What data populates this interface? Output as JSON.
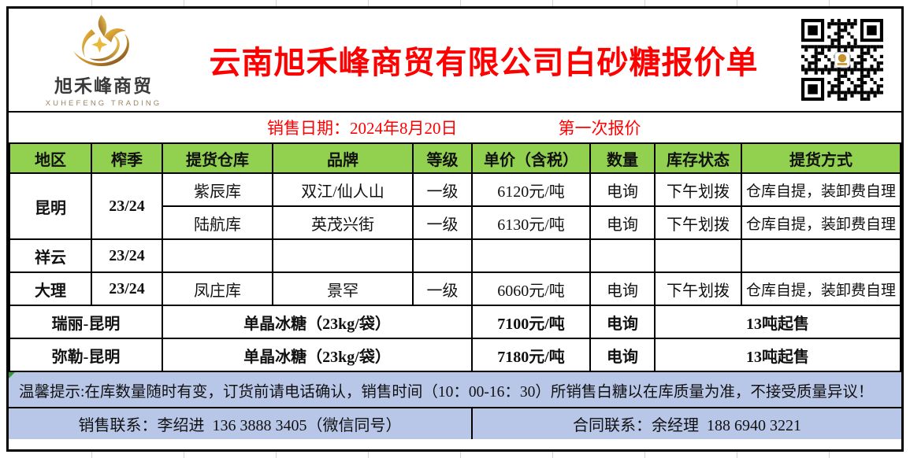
{
  "colors": {
    "title_red": "#ff0000",
    "header_green": "#92d050",
    "footer_lavender": "#b8c6e8",
    "logo_gold": "#c9912d",
    "border_black": "#000000"
  },
  "brand": {
    "name_cn": "旭禾峰商贸",
    "name_en": "XUHEFENG TRADING"
  },
  "title": "云南旭禾峰商贸有限公司白砂糖报价单",
  "date_row": {
    "sale_date": "销售日期：2024年8月20日",
    "quote_round": "第一次报价"
  },
  "table": {
    "headers": [
      "地区",
      "榨季",
      "提货仓库",
      "品牌",
      "等级",
      "单价（含税）",
      "数量",
      "库存状态",
      "提货方式"
    ],
    "rows": [
      {
        "region": "昆明",
        "season": "23/24",
        "warehouse": "紫辰库",
        "brand": "双江/仙人山",
        "grade": "一级",
        "price": "6120元/吨",
        "quantity": "电询",
        "stock": "下午划拨",
        "pickup": "仓库自提，装卸费自理"
      },
      {
        "warehouse": "陆航库",
        "brand": "英茂兴街",
        "grade": "一级",
        "price": "6130元/吨",
        "quantity": "电询",
        "stock": "下午划拨",
        "pickup": "仓库自提，装卸费自理"
      },
      {
        "region": "祥云",
        "season": "23/24",
        "warehouse": "",
        "brand": "",
        "grade": "",
        "price": "",
        "quantity": "",
        "stock": "",
        "pickup": ""
      },
      {
        "region": "大理",
        "season": "23/24",
        "warehouse": "凤庄库",
        "brand": "景罕",
        "grade": "一级",
        "price": "6060元/吨",
        "quantity": "电询",
        "stock": "下午划拨",
        "pickup": "仓库自提，装卸费自理"
      },
      {
        "route": "瑞丽-昆明",
        "product": "单晶冰糖（23kg/袋）",
        "price": "7100元/吨",
        "quantity": "电询",
        "min_sale": "13吨起售"
      },
      {
        "route": "弥勒-昆明",
        "product": "单晶冰糖（23kg/袋）",
        "price": "7180元/吨",
        "quantity": "电询",
        "min_sale": "13吨起售"
      }
    ]
  },
  "notice": "温馨提示:在库数量随时有变，订货前请电话确认，销售时间（10：00-16：30）所销售白糖以在库质量为准，不接受质量异议！",
  "contacts": {
    "sales": "销售联系：李绍进  136 3888 3405（微信同号）",
    "contract": "合同联系：余经理  188 6940 3221"
  }
}
